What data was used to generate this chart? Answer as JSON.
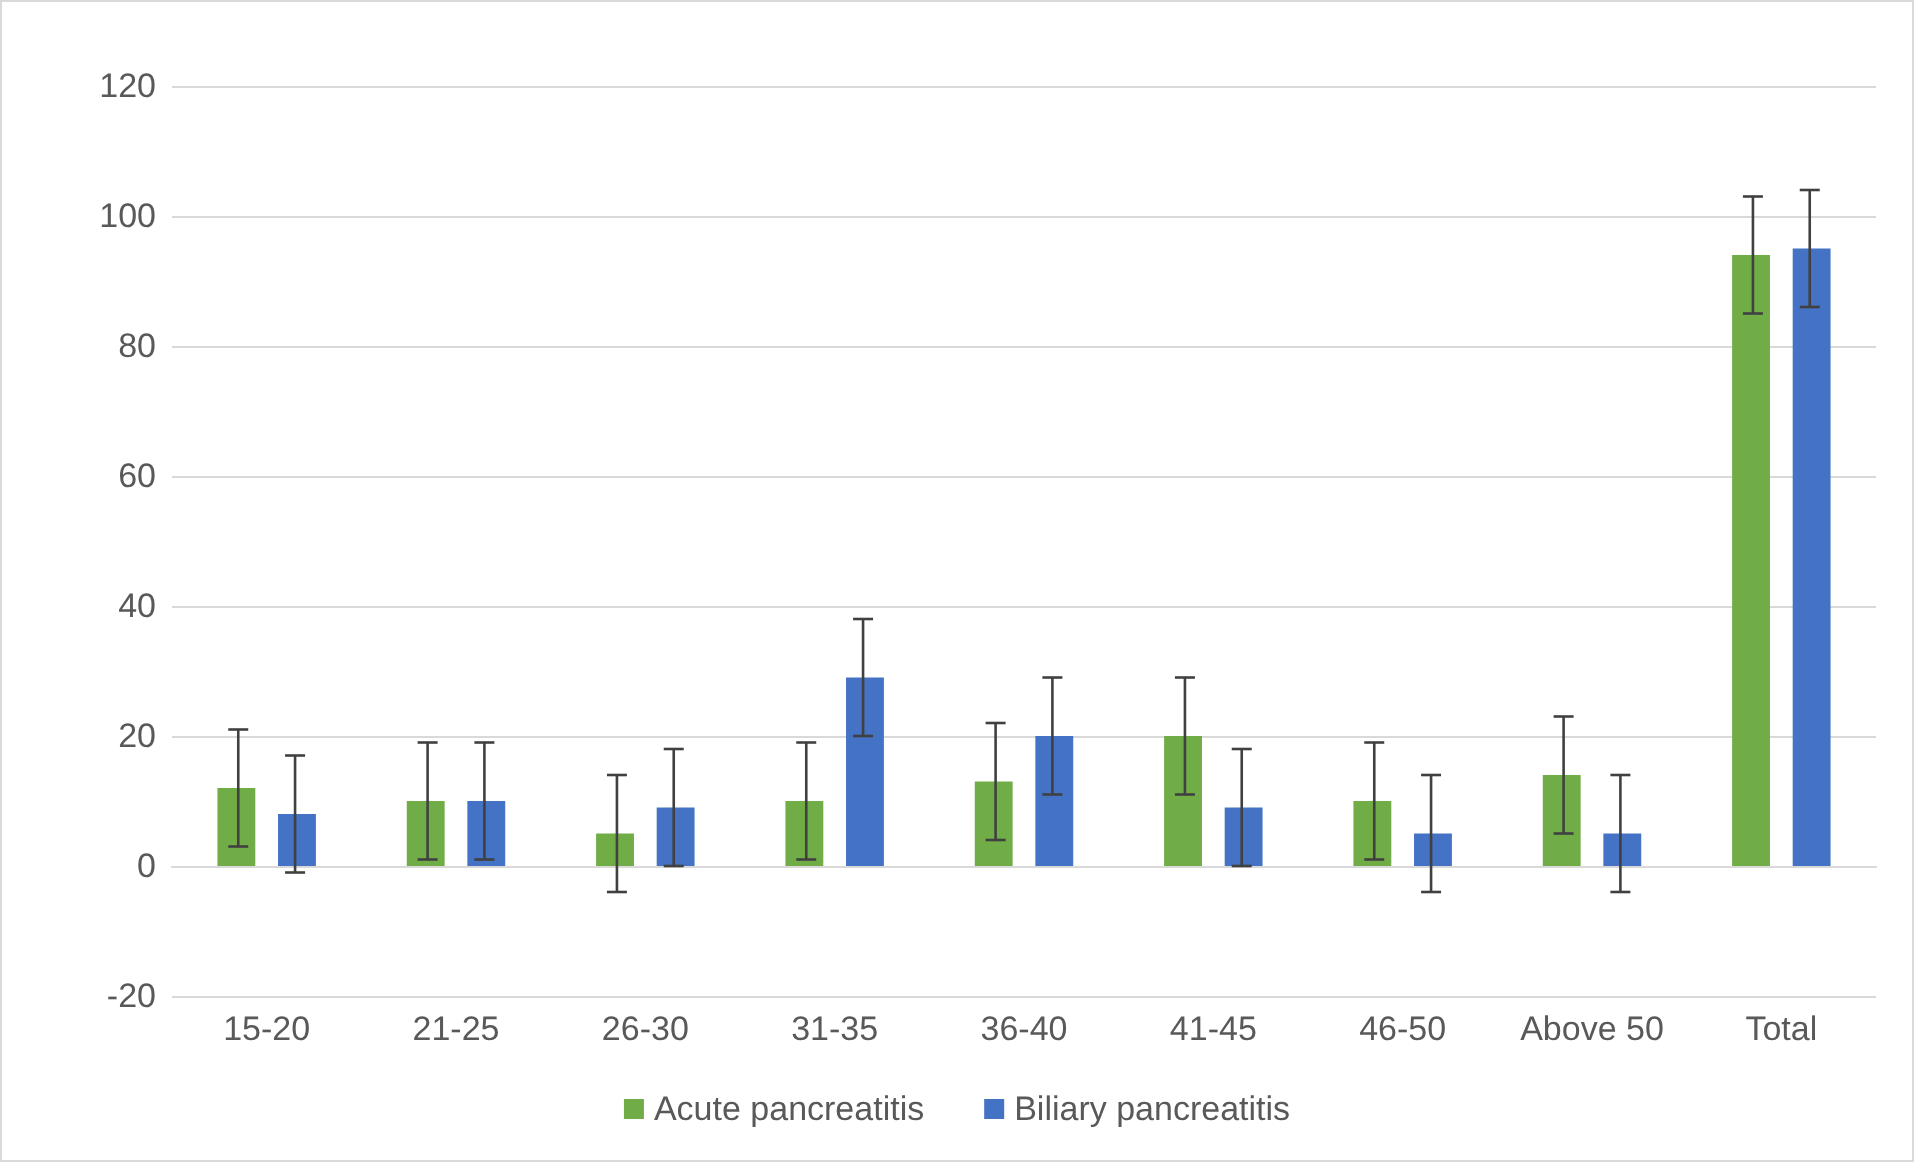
{
  "chart_data": {
    "type": "bar",
    "categories": [
      "15-20",
      "21-25",
      "26-30",
      "31-35",
      "36-40",
      "41-45",
      "46-50",
      "Above 50",
      "Total"
    ],
    "series": [
      {
        "name": "Acute pancreatitis",
        "color": "#70ad47",
        "values": [
          12,
          10,
          5,
          10,
          13,
          20,
          10,
          14,
          94
        ],
        "errors": [
          9,
          9,
          9,
          9,
          9,
          9,
          9,
          9,
          9
        ]
      },
      {
        "name": "Biliary pancreatitis",
        "color": "#4472c4",
        "values": [
          8,
          10,
          9,
          29,
          20,
          9,
          5,
          5,
          95
        ],
        "errors": [
          9,
          9,
          9,
          9,
          9,
          9,
          9,
          9,
          9
        ]
      }
    ],
    "ylim": [
      -20,
      120
    ],
    "yticks": [
      -20,
      0,
      20,
      40,
      60,
      80,
      100,
      120
    ],
    "grid": "y",
    "legend": "bottom"
  }
}
